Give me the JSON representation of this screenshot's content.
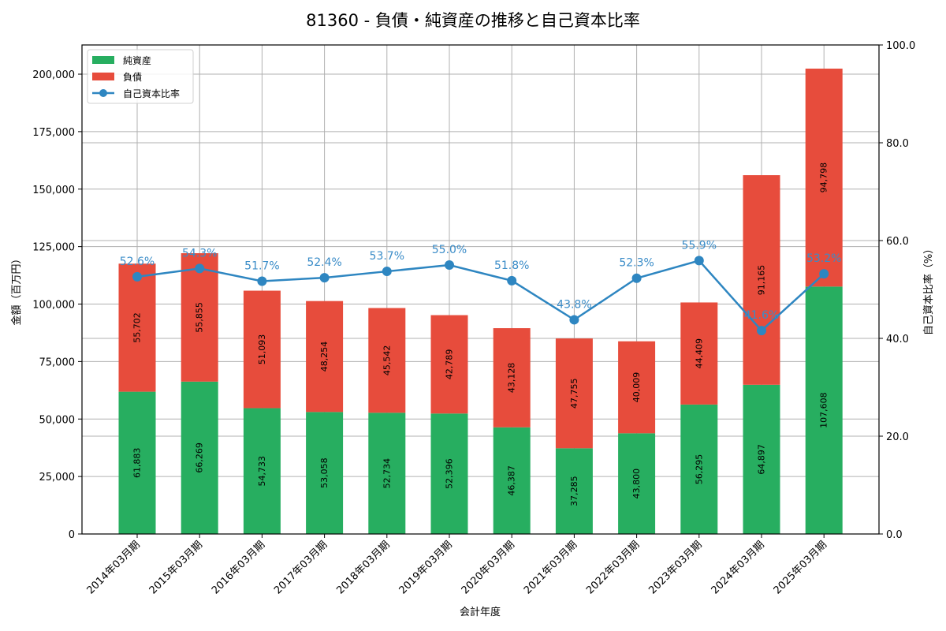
{
  "chart_data": {
    "type": "bar",
    "title": "81360 - 負債・純資産の推移と自己資本比率",
    "xlabel": "会計年度",
    "ylabel": "金額（百万円）",
    "y2label": "自己資本比率（%）",
    "ylim": [
      0,
      212700
    ],
    "y2lim": [
      0,
      100
    ],
    "yticks": [
      0,
      25000,
      50000,
      75000,
      100000,
      125000,
      150000,
      175000,
      200000
    ],
    "ytick_labels": [
      "0",
      "25,000",
      "50,000",
      "75,000",
      "100,000",
      "125,000",
      "150,000",
      "175,000",
      "200,000"
    ],
    "y2ticks": [
      0,
      20,
      40,
      60,
      80,
      100
    ],
    "y2tick_labels": [
      "0.0",
      "20.0",
      "40.0",
      "60.0",
      "80.0",
      "100.0"
    ],
    "grid": true,
    "legend_position": "upper left",
    "stacked": true,
    "categories": [
      "2014年03月期",
      "2015年03月期",
      "2016年03月期",
      "2017年03月期",
      "2018年03月期",
      "2019年03月期",
      "2020年03月期",
      "2021年03月期",
      "2022年03月期",
      "2023年03月期",
      "2024年03月期",
      "2025年03月期"
    ],
    "series": [
      {
        "name": "純資産",
        "type": "bar",
        "color": "#27ae60",
        "values": [
          61883,
          66269,
          54733,
          53058,
          52734,
          52396,
          46387,
          37285,
          43800,
          56295,
          64897,
          107608
        ],
        "labels": [
          "61,883",
          "66,269",
          "54,733",
          "53,058",
          "52,734",
          "52,396",
          "46,387",
          "37,285",
          "43,800",
          "56,295",
          "64,897",
          "107,608"
        ]
      },
      {
        "name": "負債",
        "type": "bar",
        "color": "#e74c3c",
        "values": [
          55702,
          55855,
          51093,
          48254,
          45542,
          42789,
          43128,
          47755,
          40009,
          44409,
          91165,
          94798
        ],
        "labels": [
          "55,702",
          "55,855",
          "51,093",
          "48,254",
          "45,542",
          "42,789",
          "43,128",
          "47,755",
          "40,009",
          "44,409",
          "91,165",
          "94,798"
        ]
      },
      {
        "name": "自己資本比率",
        "type": "line",
        "axis": "right",
        "color": "#2e86c1",
        "values": [
          52.6,
          54.3,
          51.7,
          52.4,
          53.7,
          55.0,
          51.8,
          43.8,
          52.3,
          55.9,
          41.6,
          53.2
        ],
        "labels": [
          "52.6%",
          "54.3%",
          "51.7%",
          "52.4%",
          "53.7%",
          "55.0%",
          "51.8%",
          "43.8%",
          "52.3%",
          "55.9%",
          "41.6%",
          "53.2%"
        ]
      }
    ]
  }
}
